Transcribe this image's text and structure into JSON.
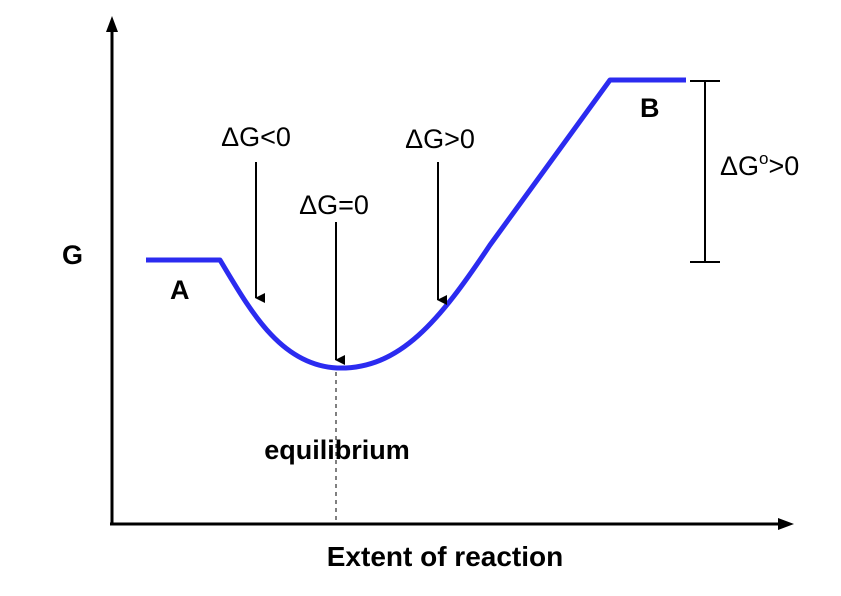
{
  "axes": {
    "y_label": "G",
    "x_label": "Extent of reaction"
  },
  "states": {
    "reactant": "A",
    "product": "B"
  },
  "annotations": {
    "dg_negative": "ΔG<0",
    "dg_zero": "ΔG=0",
    "dg_positive": "ΔG>0",
    "equilibrium": "equilibrium",
    "standard_dg": "ΔG",
    "standard_dg_superscript": "o",
    "standard_dg_suffix": ">0"
  },
  "colors": {
    "curve": "#2b2bf0",
    "ink": "#000000"
  }
}
